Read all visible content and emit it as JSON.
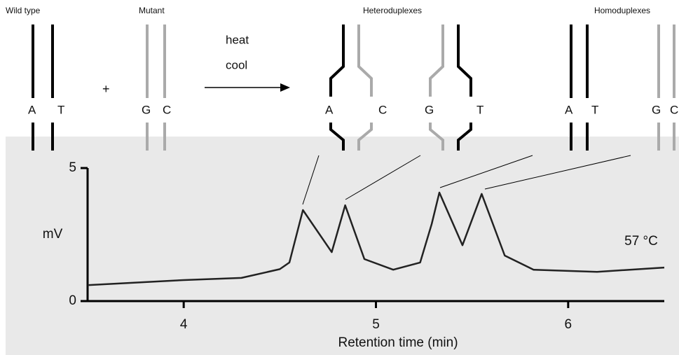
{
  "diagram": {
    "wild_type": "Wild type",
    "mutant": "Mutant",
    "plus": "+",
    "heat": "heat",
    "cool": "cool",
    "heteroduplexes": "Heteroduplexes",
    "homoduplexes": "Homoduplexes",
    "wild_bases": [
      "A",
      "T"
    ],
    "mutant_bases": [
      "G",
      "C"
    ],
    "hetero_bases": [
      "A",
      "C",
      "G",
      "T"
    ],
    "homo_bases": [
      "A",
      "T",
      "G",
      "C"
    ]
  },
  "chart_data": {
    "type": "line",
    "y_label": "mV",
    "x_label": "Retention time (min)",
    "annotation": "57 °C",
    "x": [
      3.5,
      4.0,
      4.3,
      4.5,
      4.55,
      4.62,
      4.77,
      4.84,
      4.94,
      5.09,
      5.23,
      5.29,
      5.33,
      5.45,
      5.55,
      5.67,
      5.82,
      6.15,
      6.5
    ],
    "values": [
      0.6,
      0.79,
      0.87,
      1.2,
      1.45,
      3.42,
      1.84,
      3.6,
      1.58,
      1.18,
      1.45,
      2.9,
      4.08,
      2.1,
      4.03,
      1.71,
      1.18,
      1.1,
      1.26
    ],
    "color": "#222222",
    "xlim": [
      3.5,
      6.5
    ],
    "ylim": [
      0,
      5
    ],
    "xticks": [
      4,
      5,
      6
    ],
    "yticks": [
      0,
      5
    ]
  }
}
